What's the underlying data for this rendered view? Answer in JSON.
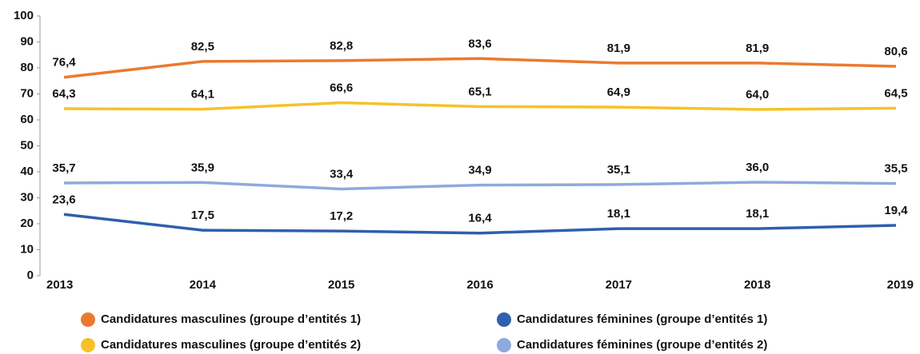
{
  "chart_data": {
    "type": "line",
    "categories": [
      "2013",
      "2014",
      "2015",
      "2016",
      "2017",
      "2018",
      "2019"
    ],
    "series": [
      {
        "name": "Candidatures masculines (groupe d’entités 1)",
        "color": "#ea7a2f",
        "values": [
          76.4,
          82.5,
          82.8,
          83.6,
          81.9,
          81.9,
          80.6
        ],
        "value_labels": [
          "76,4",
          "82,5",
          "82,8",
          "83,6",
          "81,9",
          "81,9",
          "80,6"
        ]
      },
      {
        "name": "Candidatures féminines (groupe d’entités 1)",
        "color": "#2f5fad",
        "values": [
          23.6,
          17.5,
          17.2,
          16.4,
          18.1,
          18.1,
          19.4
        ],
        "value_labels": [
          "23,6",
          "17,5",
          "17,2",
          "16,4",
          "18,1",
          "18,1",
          "19,4"
        ]
      },
      {
        "name": "Candidatures masculines (groupe d’entités 2)",
        "color": "#f6c229",
        "values": [
          64.3,
          64.1,
          66.6,
          65.1,
          64.9,
          64.0,
          64.5
        ],
        "value_labels": [
          "64,3",
          "64,1",
          "66,6",
          "65,1",
          "64,9",
          "64,0",
          "64,5"
        ]
      },
      {
        "name": "Candidatures féminines (groupe d’entités 2)",
        "color": "#8eaadc",
        "values": [
          35.7,
          35.9,
          33.4,
          34.9,
          35.1,
          36.0,
          35.5
        ],
        "value_labels": [
          "35,7",
          "35,9",
          "33,4",
          "34,9",
          "35,1",
          "36,0",
          "35,5"
        ]
      }
    ],
    "ylim": [
      0,
      100
    ],
    "yticks": [
      0,
      10,
      20,
      30,
      40,
      50,
      60,
      70,
      80,
      90,
      100
    ],
    "grid": false
  }
}
